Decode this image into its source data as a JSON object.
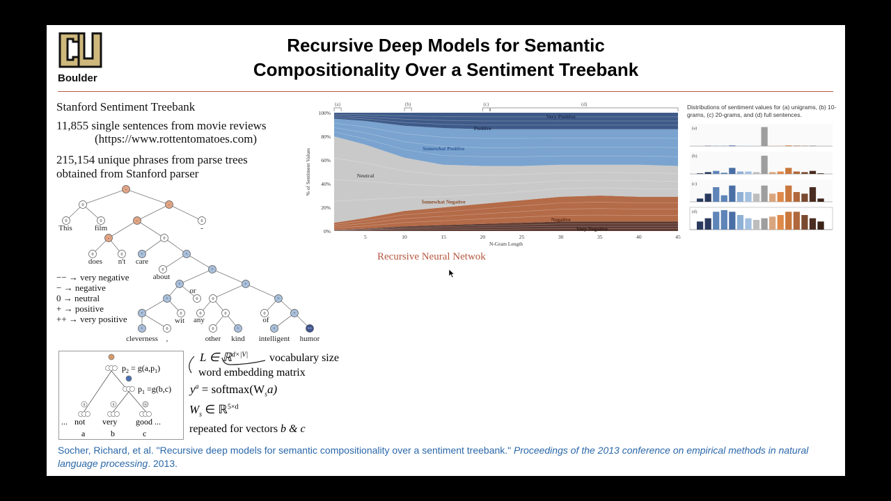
{
  "logo": {
    "text": "Boulder",
    "icon": "cu-logo-icon"
  },
  "title": {
    "line1": "Recursive Deep Models for Semantic",
    "line2": "Compositionality Over a Sentiment Treebank"
  },
  "dataset": {
    "heading": "Stanford Sentiment Treebank",
    "line1": "11,855 single sentences from movie reviews",
    "line2": "(https://www.rottentomatoes.com)",
    "line3": "215,154 unique phrases from parse trees",
    "line4": "obtained from Stanford parser"
  },
  "tree": {
    "words": [
      "This",
      "film",
      "-",
      "does",
      "n't",
      "care",
      "about",
      "or",
      "wit",
      "any",
      "of",
      "cleverness",
      ",",
      "other",
      "kind",
      "intelligent",
      "humor"
    ],
    "node_labels": {
      "neutral": "0",
      "negative": "-",
      "positive": "+",
      "very_positive": "++"
    }
  },
  "sentiment_legend": [
    "−− → very negative",
    "− → negative",
    "0 → neutral",
    "+ → positive",
    "++ → very positive"
  ],
  "composition": {
    "p2_label": "p",
    "p2_sub": "2",
    "p2_eq": " = g(a,p",
    "p2_eq_sub": "1",
    "p2_eq_end": ")",
    "p1_label": "p",
    "p1_sub": "1",
    "p1_eq": " =g(b,c)",
    "words": [
      "...",
      "not",
      "very",
      "good ..."
    ],
    "letters": [
      "a",
      "b",
      "c"
    ],
    "node_labels": [
      "0",
      "0",
      "0",
      "+"
    ]
  },
  "formulas": {
    "L": "L ∈ ℝ",
    "L_sup": "d×|V|",
    "vocab": "vocabulary size",
    "embed": "word embedding matrix",
    "y": "y",
    "y_sup": "a",
    "y_rhs": " = softmax(W",
    "y_sub": "s",
    "y_end": "a)",
    "W": "W",
    "W_sub": "s",
    "W_rhs": " ∈ ℝ",
    "W_sup": "5×d",
    "repeated": "repeated for vectors ",
    "repeated_vars": "b & c"
  },
  "chart_data": [
    {
      "type": "area",
      "title": "",
      "xlabel": "N-Gram Length",
      "ylabel": "% of Sentiment Values",
      "xlim": [
        1,
        45
      ],
      "ylim": [
        0,
        100
      ],
      "xticks": [
        "5",
        "10",
        "15",
        "20",
        "25",
        "30",
        "35",
        "40",
        "45"
      ],
      "yticks": [
        "0%",
        "20%",
        "40%",
        "60%",
        "80%",
        "100%"
      ],
      "bracket_labels": [
        "(a)",
        "(b)",
        "(c)",
        "(d)"
      ],
      "x": [
        1,
        5,
        10,
        15,
        20,
        25,
        30,
        35,
        40,
        45
      ],
      "series": [
        {
          "name": "Very Negative",
          "values": [
            1,
            2,
            4,
            5,
            6,
            7,
            8,
            8,
            8,
            8
          ]
        },
        {
          "name": "Negative",
          "values": [
            6,
            9,
            13,
            15,
            17,
            19,
            21,
            22,
            21,
            21
          ]
        },
        {
          "name": "Neutral",
          "values": [
            73,
            62,
            45,
            36,
            32,
            29,
            27,
            26,
            27,
            26
          ]
        },
        {
          "name": "Somewhat Negative",
          "values": [
            0,
            0,
            0,
            0,
            0,
            0,
            0,
            0,
            0,
            0
          ]
        },
        {
          "name": "Somewhat Positive",
          "values": [
            0,
            0,
            0,
            0,
            0,
            0,
            0,
            0,
            0,
            0
          ]
        },
        {
          "name": "Positive",
          "values": [
            15,
            20,
            27,
            31,
            31,
            31,
            30,
            30,
            30,
            31
          ]
        },
        {
          "name": "Very Positive",
          "values": [
            5,
            7,
            11,
            13,
            14,
            14,
            14,
            14,
            14,
            14
          ]
        }
      ],
      "area_labels": [
        "Very Positive",
        "Positive",
        "Somewhat Positive",
        "Neutral",
        "Somewhat Negative",
        "Negative",
        "Very Negative"
      ],
      "colors": {
        "very_negative": "#5d3a32",
        "negative": "#b46b48",
        "neutral": "#c9c9c9",
        "positive": "#7aa3cf",
        "very_positive": "#3e5a88"
      }
    },
    {
      "type": "bar",
      "title": "Distributions of sentiment values for (a) unigrams, (b) 10-grams, (c) 20-grams, and (d) full sentences.",
      "panels": [
        {
          "label": "(a)",
          "values": [
            0,
            1,
            1,
            1,
            3,
            1,
            1,
            1,
            88,
            1,
            1,
            3,
            2,
            1,
            1,
            0
          ]
        },
        {
          "label": "(b)",
          "values": [
            1,
            3,
            5,
            2,
            10,
            4,
            4,
            3,
            30,
            3,
            4,
            10,
            4,
            3,
            5,
            1
          ]
        },
        {
          "label": "(c)",
          "values": [
            2,
            5,
            9,
            4,
            10,
            6,
            6,
            5,
            10,
            5,
            6,
            10,
            6,
            5,
            9,
            2
          ]
        },
        {
          "label": "(d)",
          "values": [
            5,
            7,
            11,
            12,
            11,
            9,
            7,
            6,
            7,
            8,
            9,
            11,
            11,
            9,
            7,
            5
          ]
        }
      ]
    }
  ],
  "chart_caption": "Recursive Neural Netwok",
  "citation": {
    "authors": "Socher, Richard, et al. \"Recursive deep models for semantic compositionality over a sentiment treebank.\" ",
    "venue": "Proceedings of the 2013 conference on empirical methods in natural language processing",
    "year": ". 2013."
  }
}
